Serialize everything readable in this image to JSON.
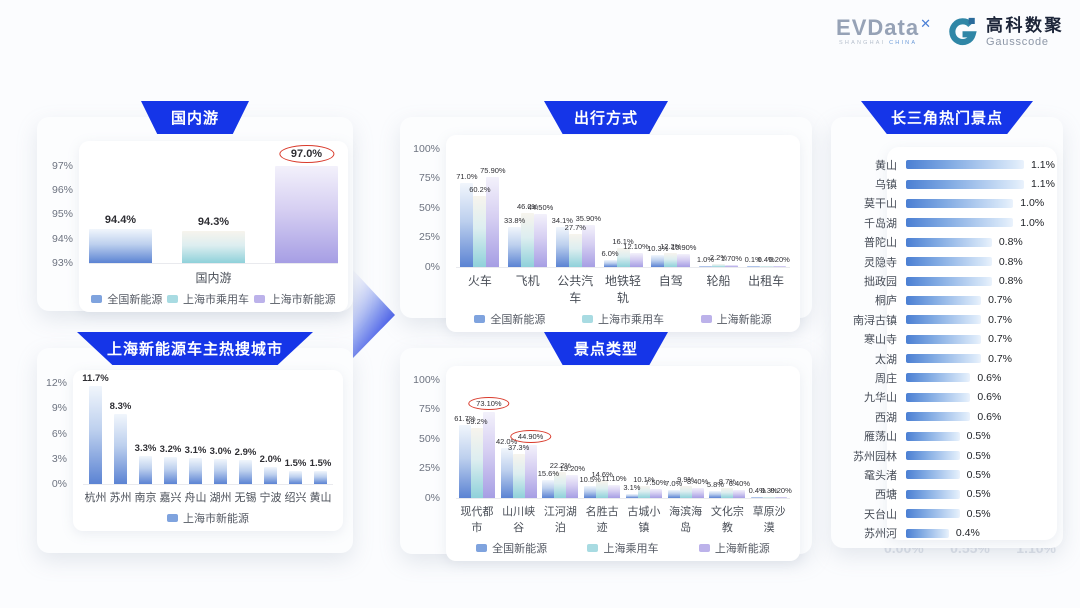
{
  "header": {
    "evdata_brand": "EVData",
    "evdata_sup": "✕",
    "evdata_sub_1": "SHANGHAI ",
    "evdata_sub_2": "CHINA",
    "gausscode_cn": "高科数聚",
    "gausscode_en": "Gausscode"
  },
  "colors": {
    "banner_blue": "#1535e8",
    "series_blue": "#7fa3de",
    "series_teal": "#a8dbe2",
    "series_purple": "#bcb2ea",
    "highlight_red": "#d93a2b"
  },
  "chart_data": [
    {
      "id": "domestic",
      "type": "bar",
      "title": "国内游",
      "xlabel": "国内游",
      "ylim": [
        93,
        97.6
      ],
      "yticks": [
        97,
        96,
        95,
        94,
        93
      ],
      "ytick_labels": [
        "97%",
        "96%",
        "95%",
        "94%",
        "93%"
      ],
      "categories": [
        "国内游"
      ],
      "legend": [
        "全国新能源",
        "上海市乘用车",
        "上海市新能源"
      ],
      "series": [
        {
          "name": "全国新能源",
          "color": "blue",
          "values": [
            94.4
          ],
          "labels": [
            "94.4%"
          ]
        },
        {
          "name": "上海市乘用车",
          "color": "teal",
          "values": [
            94.3
          ],
          "labels": [
            "94.3%"
          ]
        },
        {
          "name": "上海市新能源",
          "color": "purple",
          "values": [
            97.0
          ],
          "labels": [
            "97.0%"
          ],
          "circled": [
            0
          ]
        }
      ]
    },
    {
      "id": "cities",
      "type": "bar",
      "title": "上海新能源车主热搜城市",
      "ylim": [
        0,
        12.6
      ],
      "yticks": [
        12,
        9,
        6,
        3,
        0
      ],
      "ytick_labels": [
        "12%",
        "9%",
        "6%",
        "3%",
        "0%"
      ],
      "categories": [
        "杭州",
        "苏州",
        "南京",
        "嘉兴",
        "舟山",
        "湖州",
        "无锡",
        "宁波",
        "绍兴",
        "黄山"
      ],
      "legend": [
        "上海市新能源"
      ],
      "series": [
        {
          "name": "上海市新能源",
          "color": "blue",
          "values": [
            11.7,
            8.3,
            3.3,
            3.2,
            3.1,
            3.0,
            2.9,
            2.0,
            1.5,
            1.5
          ],
          "labels": [
            "11.7%",
            "8.3%",
            "3.3%",
            "3.2%",
            "3.1%",
            "3.0%",
            "2.9%",
            "2.0%",
            "1.5%",
            "1.5%"
          ]
        }
      ]
    },
    {
      "id": "travel_modes",
      "type": "bar",
      "title": "出行方式",
      "ylim": [
        0,
        105
      ],
      "yticks": [
        100,
        75,
        50,
        25,
        0
      ],
      "ytick_labels": [
        "100%",
        "75%",
        "50%",
        "25%",
        "0%"
      ],
      "categories": [
        "火车",
        "飞机",
        "公共汽车",
        "地铁轻轨",
        "自驾",
        "轮船",
        "出租车"
      ],
      "legend": [
        "全国新能源",
        "上海市乘用车",
        "上海新能源"
      ],
      "series": [
        {
          "name": "全国新能源",
          "color": "blue",
          "values": [
            71.0,
            33.8,
            34.1,
            6.0,
            10.3,
            1.0,
            0.1
          ],
          "labels": [
            "71.0%",
            "33.8%",
            "34.1%",
            "6.0%",
            "10.3%",
            "1.0%",
            "0.1%"
          ]
        },
        {
          "name": "上海市乘用车",
          "color": "teal",
          "values": [
            60.2,
            46.0,
            27.7,
            16.1,
            12.2,
            2.2,
            0.4
          ],
          "labels": [
            "60.2%",
            "46.0%",
            "27.7%",
            "16.1%",
            "12.2%",
            "2.2%",
            "0.4%"
          ]
        },
        {
          "name": "上海新能源",
          "color": "purple",
          "values": [
            75.9,
            44.5,
            35.9,
            12.1,
            10.9,
            1.7,
            0.2
          ],
          "labels": [
            "75.90%",
            "44.50%",
            "35.90%",
            "12.10%",
            "10.90%",
            "1.70%",
            "0.20%"
          ]
        }
      ]
    },
    {
      "id": "attraction_types",
      "type": "bar",
      "title": "景点类型",
      "ylim": [
        0,
        105
      ],
      "yticks": [
        100,
        75,
        50,
        25,
        0
      ],
      "ytick_labels": [
        "100%",
        "75%",
        "50%",
        "25%",
        "0%"
      ],
      "categories": [
        "现代都市",
        "山川峡谷",
        "江河湖泊",
        "名胜古迹",
        "古城小镇",
        "海滨海岛",
        "文化宗教",
        "草原沙漠"
      ],
      "legend": [
        "全国新能源",
        "上海乘用车",
        "上海新能源"
      ],
      "series": [
        {
          "name": "全国新能源",
          "color": "blue",
          "values": [
            61.7,
            42.0,
            15.6,
            10.5,
            3.1,
            7.0,
            5.8,
            0.4
          ],
          "labels": [
            "61.7%",
            "42.0%",
            "15.6%",
            "10.5%",
            "3.1%",
            "7.0%",
            "5.8%",
            "0.4%"
          ]
        },
        {
          "name": "上海乘用车",
          "color": "teal",
          "values": [
            59.2,
            37.3,
            22.2,
            14.6,
            10.1,
            9.9,
            8.7,
            0.3
          ],
          "labels": [
            "59.2%",
            "37.3%",
            "22.2%",
            "14.6%",
            "10.1%",
            "9.9%",
            "8.7%",
            "0.3%"
          ]
        },
        {
          "name": "上海新能源",
          "color": "purple",
          "values": [
            73.1,
            44.9,
            19.2,
            11.1,
            7.5,
            8.4,
            6.4,
            0.2
          ],
          "labels": [
            "73.10%",
            "44.90%",
            "19.20%",
            "11.10%",
            "7.50%",
            "8.40%",
            "6.40%",
            "0.20%"
          ],
          "circled": [
            0,
            1
          ]
        }
      ]
    },
    {
      "id": "hot_spots",
      "type": "bar",
      "orientation": "horizontal",
      "title": "长三角热门景点",
      "xlim": [
        0,
        1.1
      ],
      "faint_axis": [
        "0.00%",
        "0.55%",
        "1.10%"
      ],
      "categories": [
        "黄山",
        "乌镇",
        "莫干山",
        "千岛湖",
        "普陀山",
        "灵隐寺",
        "拙政园",
        "桐庐",
        "南浔古镇",
        "寒山寺",
        "太湖",
        "周庄",
        "九华山",
        "西湖",
        "雁荡山",
        "苏州园林",
        "鼋头渚",
        "西塘",
        "天台山",
        "苏州河"
      ],
      "values": [
        1.1,
        1.1,
        1.0,
        1.0,
        0.8,
        0.8,
        0.8,
        0.7,
        0.7,
        0.7,
        0.7,
        0.6,
        0.6,
        0.6,
        0.5,
        0.5,
        0.5,
        0.5,
        0.5,
        0.4
      ],
      "labels": [
        "1.1%",
        "1.1%",
        "1.0%",
        "1.0%",
        "0.8%",
        "0.8%",
        "0.8%",
        "0.7%",
        "0.7%",
        "0.7%",
        "0.7%",
        "0.6%",
        "0.6%",
        "0.6%",
        "0.5%",
        "0.5%",
        "0.5%",
        "0.5%",
        "0.5%",
        "0.4%"
      ]
    }
  ]
}
